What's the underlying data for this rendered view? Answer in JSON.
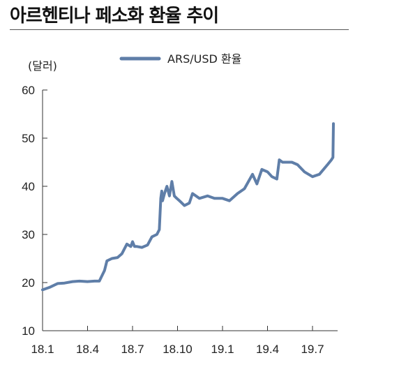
{
  "chart_data": {
    "type": "line",
    "title": "아르헨티나 페소화 환율 추이",
    "ylabel": "(달러)",
    "xlabel": "",
    "ylim": [
      10,
      60
    ],
    "yticks": [
      10,
      20,
      30,
      40,
      50,
      60
    ],
    "xticks": [
      "18.1",
      "18.4",
      "18.7",
      "18.10",
      "19.1",
      "19.4",
      "19.7"
    ],
    "legend_position": "top-center",
    "grid": false,
    "line_color": "#5f7ea8",
    "series": [
      {
        "name": "ARS/USD 환율",
        "x": [
          "2018-01-01",
          "2018-01-15",
          "2018-02-01",
          "2018-02-15",
          "2018-03-01",
          "2018-03-15",
          "2018-04-01",
          "2018-04-15",
          "2018-04-25",
          "2018-05-05",
          "2018-05-10",
          "2018-05-20",
          "2018-06-01",
          "2018-06-10",
          "2018-06-20",
          "2018-06-28",
          "2018-07-01",
          "2018-07-05",
          "2018-07-10",
          "2018-07-20",
          "2018-08-01",
          "2018-08-10",
          "2018-08-20",
          "2018-08-25",
          "2018-08-28",
          "2018-08-30",
          "2018-09-01",
          "2018-09-05",
          "2018-09-10",
          "2018-09-15",
          "2018-09-20",
          "2018-09-25",
          "2018-09-30",
          "2018-10-05",
          "2018-10-15",
          "2018-10-25",
          "2018-11-01",
          "2018-11-15",
          "2018-12-01",
          "2018-12-15",
          "2019-01-01",
          "2019-01-15",
          "2019-02-01",
          "2019-02-15",
          "2019-03-01",
          "2019-03-10",
          "2019-03-20",
          "2019-04-01",
          "2019-04-10",
          "2019-04-20",
          "2019-04-25",
          "2019-05-01",
          "2019-05-10",
          "2019-05-20",
          "2019-06-01",
          "2019-06-15",
          "2019-07-01",
          "2019-07-15",
          "2019-08-01",
          "2019-08-09",
          "2019-08-12",
          "2019-08-13"
        ],
        "values": [
          18.5,
          19.0,
          19.8,
          19.9,
          20.2,
          20.3,
          20.2,
          20.3,
          20.3,
          22.5,
          24.5,
          25.0,
          25.2,
          26.0,
          28.0,
          27.5,
          28.5,
          27.5,
          27.5,
          27.3,
          27.8,
          29.5,
          30.0,
          31.0,
          37.5,
          39.0,
          37.0,
          38.5,
          40.0,
          38.0,
          41.0,
          38.0,
          37.5,
          37.0,
          36.0,
          36.5,
          38.5,
          37.5,
          38.0,
          37.5,
          37.5,
          37.0,
          38.5,
          39.5,
          42.5,
          40.5,
          43.5,
          43.0,
          42.0,
          41.5,
          45.5,
          45.0,
          45.0,
          45.0,
          44.5,
          43.0,
          42.0,
          42.5,
          44.5,
          45.5,
          46.0,
          53.0
        ]
      }
    ]
  }
}
